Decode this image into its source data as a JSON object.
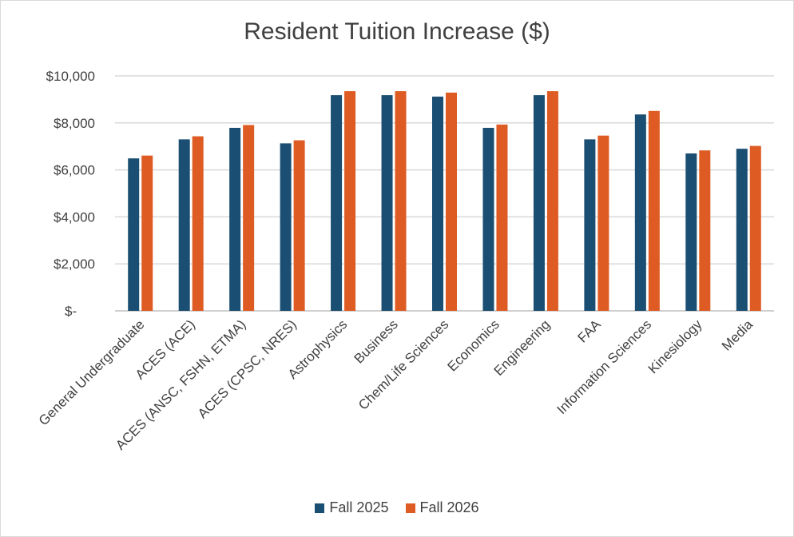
{
  "chart_data": {
    "type": "bar",
    "title": "Resident Tuition Increase ($)",
    "xlabel": "",
    "ylabel": "",
    "ylim": [
      0,
      10000
    ],
    "yticks": [
      0,
      2000,
      4000,
      6000,
      8000,
      10000
    ],
    "ytick_labels": [
      "$-",
      "$2,000",
      "$4,000",
      "$6,000",
      "$8,000",
      "$10,000"
    ],
    "grid": true,
    "legend_position": "bottom",
    "categories": [
      "General Undergraduate",
      "ACES (ACE)",
      "ACES (ANSC, FSHN, ETMA)",
      "ACES (CPSC, NRES)",
      "Astrophysics",
      "Business",
      "Chem/Life Sciences",
      "Economics",
      "Engineering",
      "FAA",
      "Information Sciences",
      "Kinesiology",
      "Media"
    ],
    "series": [
      {
        "name": "Fall 2025",
        "color": "#1a4e72",
        "values": [
          6490,
          7300,
          7790,
          7130,
          9180,
          9180,
          9120,
          7790,
          9180,
          7300,
          8360,
          6700,
          6900
        ]
      },
      {
        "name": "Fall 2026",
        "color": "#de5b23",
        "values": [
          6610,
          7430,
          7910,
          7260,
          9350,
          9350,
          9290,
          7930,
          9350,
          7460,
          8510,
          6830,
          7020
        ]
      }
    ]
  }
}
